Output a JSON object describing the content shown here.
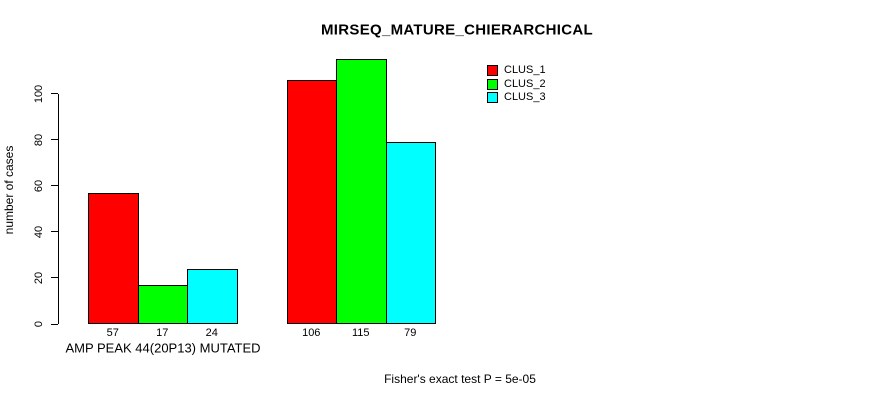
{
  "chart_data": {
    "type": "bar",
    "title": "MIRSEQ_MATURE_CHIERARCHICAL",
    "ylabel": "number of cases",
    "xlabel": "",
    "group_labels": [
      "AMP PEAK 44(20P13) MUTATED",
      ""
    ],
    "series": [
      {
        "name": "CLUS_1",
        "color": "#ff0000",
        "values": [
          57,
          106
        ]
      },
      {
        "name": "CLUS_2",
        "color": "#00ff00",
        "values": [
          17,
          115
        ]
      },
      {
        "name": "CLUS_3",
        "color": "#00ffff",
        "values": [
          24,
          79
        ]
      }
    ],
    "bar_value_labels": [
      [
        "57",
        "17",
        "24"
      ],
      [
        "106",
        "115",
        "79"
      ]
    ],
    "yticks": [
      0,
      20,
      40,
      60,
      80,
      100
    ],
    "ylim": [
      0,
      115
    ],
    "grid": false,
    "legend_position": "top-right",
    "note": "Fisher's exact test P = 5e-05",
    "axis_color": "#000000",
    "background_color": "#ffffff"
  }
}
